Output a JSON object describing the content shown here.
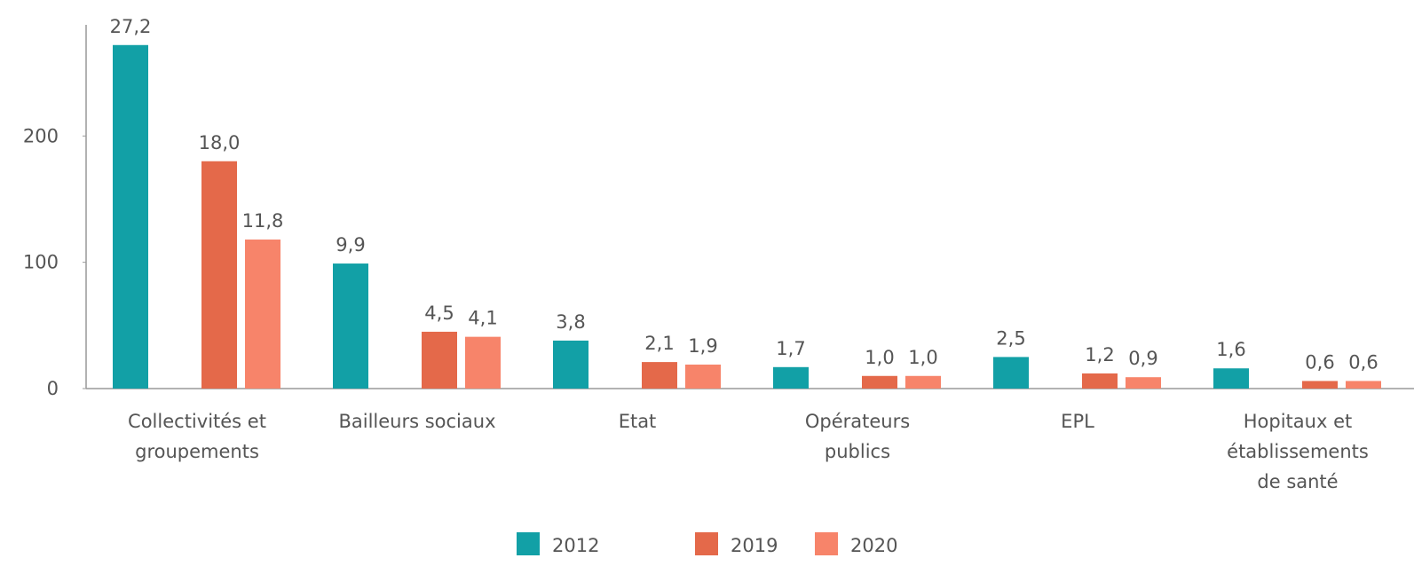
{
  "chart_data": {
    "type": "bar",
    "categories": [
      "Collectivités et\ngroupements",
      "Bailleurs sociaux",
      "Etat",
      "Opérateurs\npublics",
      "EPL",
      "Hopitaux et\nétablissements\nde santé"
    ],
    "series": [
      {
        "name": "2012",
        "color": "#12a0a6",
        "values": [
          272,
          99,
          38,
          17,
          25,
          16
        ],
        "value_labels": [
          "27,2",
          "9,9",
          "3,8",
          "1,7",
          "2,5",
          "1,6"
        ]
      },
      {
        "name": "2019",
        "color": "#e4694a",
        "values": [
          180,
          45,
          21,
          10,
          12,
          6
        ],
        "value_labels": [
          "18,0",
          "4,5",
          "2,1",
          "1,0",
          "1,2",
          "0,6"
        ]
      },
      {
        "name": "2020",
        "color": "#f7846a",
        "values": [
          118,
          41,
          19,
          10,
          9,
          6
        ],
        "value_labels": [
          "11,8",
          "4,1",
          "1,9",
          "1,0",
          "0,9",
          "0,6"
        ]
      }
    ],
    "ylim": [
      0,
      288
    ],
    "yticks": [
      0,
      100,
      200
    ],
    "legend": "bottom"
  }
}
